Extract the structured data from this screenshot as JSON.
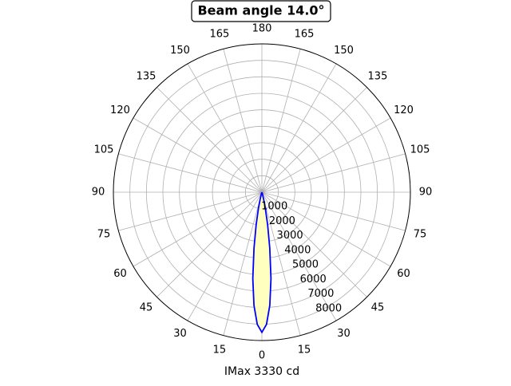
{
  "chart_data": {
    "type": "polar",
    "title": "Beam angle 14.0°",
    "xlabel": "IMax 3330 cd",
    "theta": [
      -20,
      -18,
      -16,
      -14,
      -12,
      -10,
      -8,
      -6,
      -4,
      -2,
      0,
      2,
      4,
      6,
      8,
      10,
      12,
      14,
      16,
      18,
      20
    ],
    "series": [
      {
        "color": "#0000ff",
        "fill": "#ffffc0",
        "values": [
          0,
          50,
          160,
          430,
          1000,
          2000,
          3430,
          5270,
          6880,
          8020,
          8500,
          8020,
          6880,
          5270,
          3430,
          2000,
          1000,
          430,
          160,
          50,
          0
        ]
      }
    ],
    "rlim": [
      0,
      9000
    ],
    "rticks": [
      1000,
      2000,
      3000,
      4000,
      5000,
      6000,
      7000,
      8000
    ],
    "thetaticks": [
      0,
      15,
      30,
      45,
      60,
      75,
      90,
      105,
      120,
      135,
      150,
      165,
      180,
      {
        "value": 195,
        "label": "165"
      },
      {
        "value": 210,
        "label": "150"
      },
      {
        "value": 225,
        "label": "135"
      },
      {
        "value": 240,
        "label": "120"
      },
      {
        "value": 255,
        "label": "105"
      },
      {
        "value": 270,
        "label": "90"
      },
      {
        "value": 285,
        "label": "75"
      },
      {
        "value": 300,
        "label": "60"
      },
      {
        "value": 315,
        "label": "45"
      },
      {
        "value": 330,
        "label": "30"
      },
      {
        "value": 345,
        "label": "15"
      }
    ],
    "grid": true
  }
}
